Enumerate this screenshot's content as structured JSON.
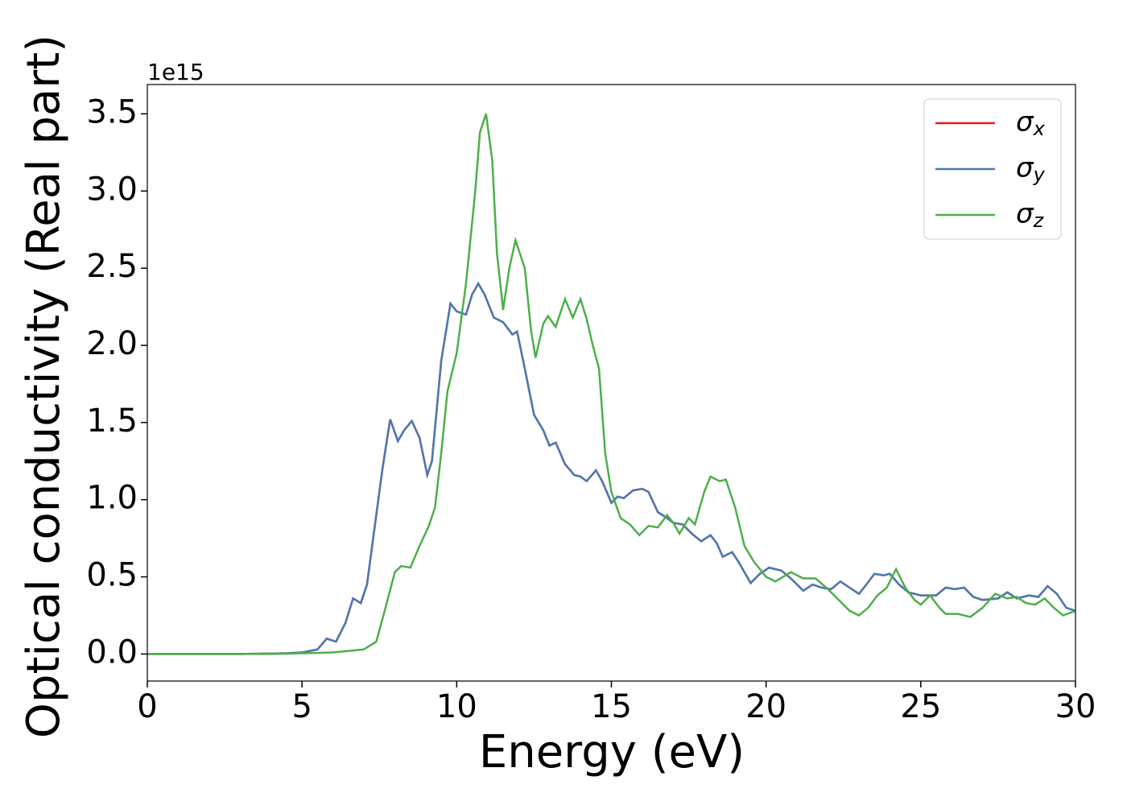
{
  "chart_data": {
    "type": "line",
    "xlabel": "Energy (eV)",
    "ylabel": "Optical conductivity (Real part)",
    "yaxis_offset": "1e15",
    "xlim": [
      0,
      30
    ],
    "xticks": [
      0,
      5,
      10,
      15,
      20,
      25,
      30
    ],
    "ylim": [
      -0.175,
      3.69
    ],
    "yticks": [
      {
        "value": 0,
        "label": "0.0"
      },
      0.5,
      {
        "value": 1,
        "label": "1.0"
      },
      1.5,
      {
        "value": 2,
        "label": "2.0"
      },
      2.5,
      {
        "value": 3,
        "label": "3.0"
      },
      3.5
    ],
    "legend": "upper right",
    "series": [
      {
        "name": "σx",
        "color": "#e41a1c",
        "x": [
          0,
          1,
          2,
          3,
          4,
          4.5,
          5,
          5.5,
          5.8,
          6.1,
          6.4,
          6.65,
          6.9,
          7.1,
          7.4,
          7.6,
          7.85,
          8.1,
          8.3,
          8.55,
          8.8,
          9.05,
          9.2,
          9.5,
          9.8,
          10,
          10.3,
          10.5,
          10.7,
          10.9,
          11.2,
          11.5,
          11.8,
          11.95,
          12.2,
          12.5,
          12.8,
          13,
          13.2,
          13.5,
          13.8,
          14,
          14.2,
          14.5,
          14.7,
          15,
          15.2,
          15.4,
          15.7,
          16,
          16.2,
          16.5,
          16.8,
          17,
          17.3,
          17.6,
          17.9,
          18.2,
          18.4,
          18.6,
          18.9,
          19.1,
          19.5,
          19.8,
          20.1,
          20.5,
          20.8,
          21.2,
          21.5,
          21.8,
          22.1,
          22.4,
          22.7,
          23,
          23.2,
          23.5,
          23.8,
          24,
          24.3,
          24.6,
          25,
          25.5,
          25.8,
          26.1,
          26.4,
          26.7,
          27,
          27.5,
          27.8,
          28.1,
          28.5,
          28.8,
          29.1,
          29.4,
          29.7,
          30
        ],
        "values": [
          0,
          0,
          0,
          0,
          0.003,
          0.005,
          0.01,
          0.03,
          0.1,
          0.08,
          0.2,
          0.36,
          0.33,
          0.45,
          0.9,
          1.2,
          1.52,
          1.38,
          1.45,
          1.51,
          1.4,
          1.16,
          1.25,
          1.9,
          2.27,
          2.22,
          2.2,
          2.33,
          2.4,
          2.33,
          2.18,
          2.15,
          2.07,
          2.09,
          1.85,
          1.55,
          1.45,
          1.35,
          1.37,
          1.23,
          1.16,
          1.15,
          1.12,
          1.19,
          1.12,
          0.98,
          1.02,
          1.01,
          1.06,
          1.07,
          1.05,
          0.92,
          0.88,
          0.85,
          0.84,
          0.78,
          0.73,
          0.77,
          0.72,
          0.63,
          0.66,
          0.6,
          0.46,
          0.52,
          0.56,
          0.54,
          0.49,
          0.41,
          0.45,
          0.43,
          0.42,
          0.47,
          0.43,
          0.39,
          0.44,
          0.52,
          0.51,
          0.52,
          0.45,
          0.4,
          0.38,
          0.38,
          0.43,
          0.42,
          0.43,
          0.37,
          0.35,
          0.36,
          0.4,
          0.36,
          0.38,
          0.37,
          0.44,
          0.39,
          0.3,
          0.28
        ]
      },
      {
        "name": "σy",
        "color": "#4a7ab3",
        "x": [
          0,
          1,
          2,
          3,
          4,
          4.5,
          5,
          5.5,
          5.8,
          6.1,
          6.4,
          6.65,
          6.9,
          7.1,
          7.4,
          7.6,
          7.85,
          8.1,
          8.3,
          8.55,
          8.8,
          9.05,
          9.2,
          9.5,
          9.8,
          10,
          10.3,
          10.5,
          10.7,
          10.9,
          11.2,
          11.5,
          11.8,
          11.95,
          12.2,
          12.5,
          12.8,
          13,
          13.2,
          13.5,
          13.8,
          14,
          14.2,
          14.5,
          14.7,
          15,
          15.2,
          15.4,
          15.7,
          16,
          16.2,
          16.5,
          16.8,
          17,
          17.3,
          17.6,
          17.9,
          18.2,
          18.4,
          18.6,
          18.9,
          19.1,
          19.5,
          19.8,
          20.1,
          20.5,
          20.8,
          21.2,
          21.5,
          21.8,
          22.1,
          22.4,
          22.7,
          23,
          23.2,
          23.5,
          23.8,
          24,
          24.3,
          24.6,
          25,
          25.5,
          25.8,
          26.1,
          26.4,
          26.7,
          27,
          27.5,
          27.8,
          28.1,
          28.5,
          28.8,
          29.1,
          29.4,
          29.7,
          30
        ],
        "values": [
          0,
          0,
          0,
          0,
          0.003,
          0.005,
          0.01,
          0.03,
          0.1,
          0.08,
          0.2,
          0.36,
          0.33,
          0.45,
          0.9,
          1.2,
          1.52,
          1.38,
          1.45,
          1.51,
          1.4,
          1.16,
          1.25,
          1.9,
          2.27,
          2.22,
          2.2,
          2.33,
          2.4,
          2.33,
          2.18,
          2.15,
          2.07,
          2.09,
          1.85,
          1.55,
          1.45,
          1.35,
          1.37,
          1.23,
          1.16,
          1.15,
          1.12,
          1.19,
          1.12,
          0.98,
          1.02,
          1.01,
          1.06,
          1.07,
          1.05,
          0.92,
          0.88,
          0.85,
          0.84,
          0.78,
          0.73,
          0.77,
          0.72,
          0.63,
          0.66,
          0.6,
          0.46,
          0.52,
          0.56,
          0.54,
          0.49,
          0.41,
          0.45,
          0.43,
          0.42,
          0.47,
          0.43,
          0.39,
          0.44,
          0.52,
          0.51,
          0.52,
          0.45,
          0.4,
          0.38,
          0.38,
          0.43,
          0.42,
          0.43,
          0.37,
          0.35,
          0.36,
          0.4,
          0.36,
          0.38,
          0.37,
          0.44,
          0.39,
          0.3,
          0.28
        ]
      },
      {
        "name": "σz",
        "color": "#4daf4a",
        "x": [
          0,
          2,
          4,
          5,
          6,
          6.5,
          7,
          7.4,
          7.7,
          8,
          8.2,
          8.5,
          8.8,
          9.1,
          9.3,
          9.5,
          9.7,
          10,
          10.3,
          10.6,
          10.75,
          10.95,
          11.15,
          11.3,
          11.5,
          11.7,
          11.9,
          12.2,
          12.4,
          12.55,
          12.8,
          12.95,
          13.2,
          13.5,
          13.75,
          14,
          14.2,
          14.4,
          14.6,
          14.8,
          15,
          15.3,
          15.6,
          15.9,
          16.2,
          16.5,
          16.8,
          17,
          17.2,
          17.5,
          17.7,
          18,
          18.2,
          18.5,
          18.7,
          19,
          19.3,
          19.6,
          20,
          20.3,
          20.8,
          21.2,
          21.6,
          22,
          22.4,
          22.7,
          23,
          23.3,
          23.6,
          23.9,
          24.2,
          24.5,
          24.8,
          25,
          25.3,
          25.6,
          25.8,
          26.2,
          26.6,
          27,
          27.4,
          27.8,
          28.1,
          28.4,
          28.7,
          29,
          29.3,
          29.6,
          30
        ],
        "values": [
          0,
          0,
          0,
          0.005,
          0.01,
          0.02,
          0.03,
          0.08,
          0.3,
          0.53,
          0.57,
          0.56,
          0.7,
          0.83,
          0.95,
          1.3,
          1.7,
          1.95,
          2.4,
          3.0,
          3.38,
          3.5,
          3.2,
          2.6,
          2.23,
          2.5,
          2.68,
          2.5,
          2.1,
          1.92,
          2.14,
          2.19,
          2.12,
          2.3,
          2.18,
          2.3,
          2.17,
          2.0,
          1.85,
          1.3,
          1.05,
          0.88,
          0.84,
          0.77,
          0.83,
          0.82,
          0.9,
          0.85,
          0.78,
          0.88,
          0.84,
          1.05,
          1.15,
          1.12,
          1.13,
          0.95,
          0.7,
          0.6,
          0.5,
          0.47,
          0.53,
          0.49,
          0.49,
          0.42,
          0.34,
          0.28,
          0.25,
          0.3,
          0.38,
          0.43,
          0.55,
          0.43,
          0.35,
          0.32,
          0.38,
          0.3,
          0.26,
          0.26,
          0.24,
          0.3,
          0.39,
          0.36,
          0.37,
          0.33,
          0.32,
          0.36,
          0.3,
          0.25,
          0.28
        ]
      }
    ]
  }
}
